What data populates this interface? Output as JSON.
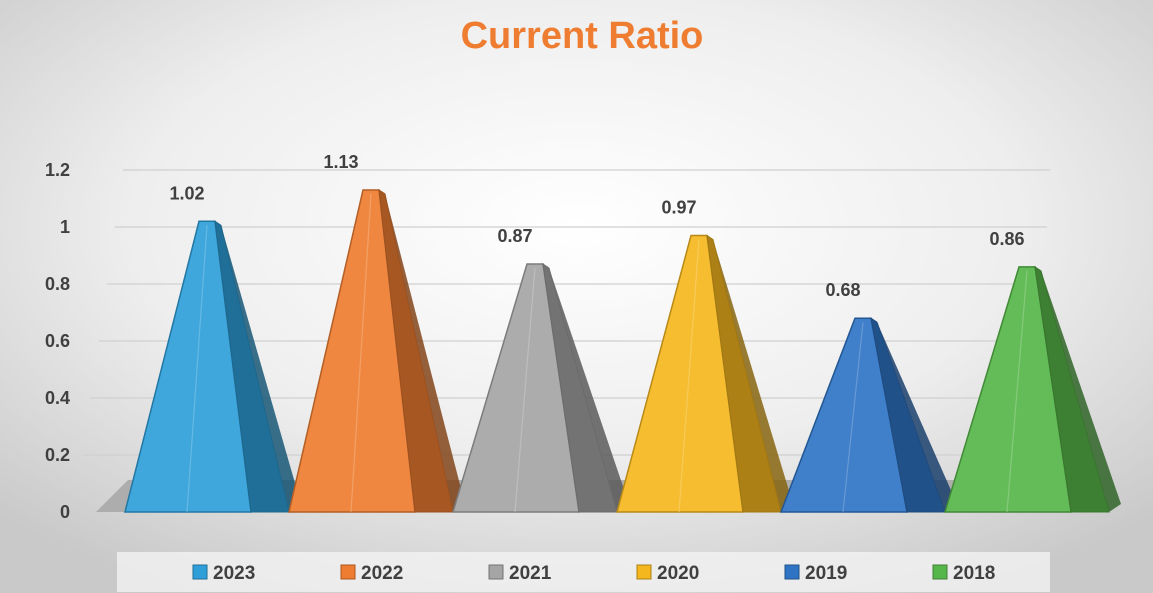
{
  "chart_data": {
    "type": "bar",
    "title": "Current Ratio",
    "categories": [
      "2023",
      "2022",
      "2021",
      "2020",
      "2019",
      "2018"
    ],
    "values": [
      1.02,
      1.13,
      0.87,
      0.97,
      0.68,
      0.86
    ],
    "data_labels": [
      "1.02",
      "1.13",
      "0.87",
      "0.97",
      "0.68",
      "0.86"
    ],
    "colors": [
      "#2e9fd9",
      "#ee7d31",
      "#a5a5a5",
      "#f5b71e",
      "#2f74c4",
      "#57b649"
    ],
    "ylim": [
      0,
      1.2
    ],
    "yticks": [
      0,
      0.2,
      0.4,
      0.6,
      0.8,
      1,
      1.2
    ],
    "ytick_labels": [
      "0",
      "0.2",
      "0.4",
      "0.6",
      "0.8",
      "1",
      "1.2"
    ],
    "bar_shape": "3d-pyramid",
    "grid": true,
    "legend": {
      "position": "bottom",
      "entries": [
        "2023",
        "2022",
        "2021",
        "2020",
        "2019",
        "2018"
      ]
    },
    "title_color": "#ee7d31",
    "xlabel": "",
    "ylabel": ""
  }
}
